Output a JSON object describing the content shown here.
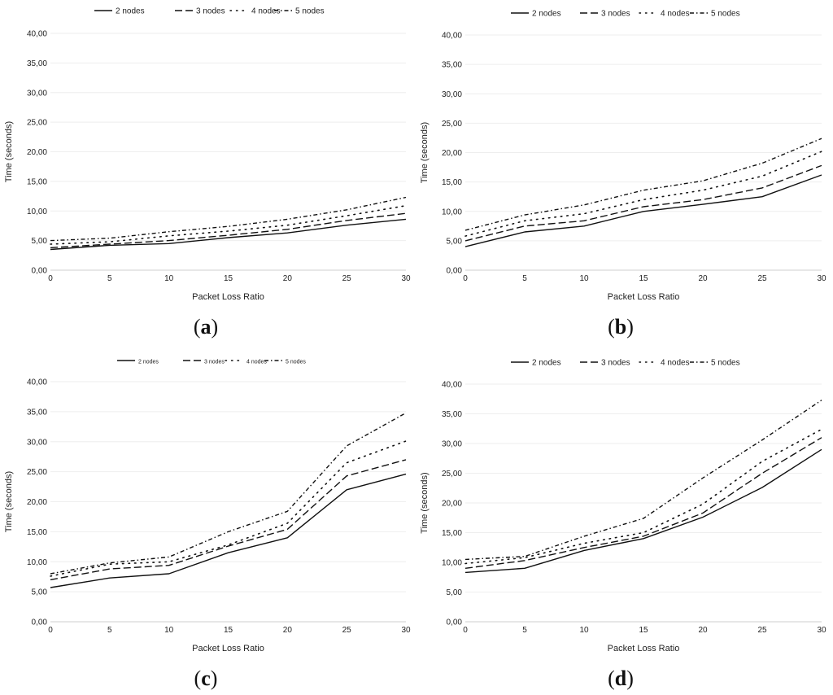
{
  "chart_data": [
    {
      "type": "line",
      "panel_label": "a",
      "xlabel": "Packet Loss Ratio",
      "ylabel": "Time (seconds)",
      "categories": [
        "0",
        "5",
        "10",
        "15",
        "20",
        "25",
        "30"
      ],
      "x": [
        0,
        5,
        10,
        15,
        20,
        25,
        30
      ],
      "ylim": [
        0,
        40
      ],
      "yticks": [
        "0,00",
        "5,00",
        "10,00",
        "15,00",
        "20,00",
        "25,00",
        "30,00",
        "35,00",
        "40,00"
      ],
      "grid": true,
      "legend_position": "top",
      "series": [
        {
          "name": "2 nodes",
          "style": "solid",
          "values": [
            3.5,
            4.2,
            4.5,
            5.5,
            6.3,
            7.6,
            8.6
          ]
        },
        {
          "name": "3 nodes",
          "style": "dashed",
          "values": [
            3.8,
            4.4,
            5.0,
            5.9,
            6.9,
            8.4,
            9.6
          ]
        },
        {
          "name": "4 nodes",
          "style": "dotted",
          "values": [
            4.4,
            4.8,
            5.8,
            6.6,
            7.6,
            9.2,
            10.9
          ]
        },
        {
          "name": "5 nodes",
          "style": "dashdot",
          "values": [
            5.0,
            5.4,
            6.5,
            7.4,
            8.6,
            10.2,
            12.3
          ]
        }
      ]
    },
    {
      "type": "line",
      "panel_label": "b",
      "xlabel": "Packet Loss Ratio",
      "ylabel": "Time (seconds)",
      "categories": [
        "0",
        "5",
        "10",
        "15",
        "20",
        "25",
        "30"
      ],
      "x": [
        0,
        5,
        10,
        15,
        20,
        25,
        30
      ],
      "ylim": [
        0,
        40
      ],
      "yticks": [
        "0,00",
        "5,00",
        "10,00",
        "15,00",
        "20,00",
        "25,00",
        "30,00",
        "35,00",
        "40,00"
      ],
      "grid": true,
      "legend_position": "top",
      "series": [
        {
          "name": "2 nodes",
          "style": "solid",
          "values": [
            4.0,
            6.5,
            7.5,
            10.0,
            11.2,
            12.5,
            16.2
          ]
        },
        {
          "name": "3 nodes",
          "style": "dashed",
          "values": [
            5.0,
            7.5,
            8.4,
            10.8,
            12.0,
            14.0,
            17.8
          ]
        },
        {
          "name": "4 nodes",
          "style": "dotted",
          "values": [
            5.8,
            8.4,
            9.6,
            12.0,
            13.6,
            16.0,
            20.2
          ]
        },
        {
          "name": "5 nodes",
          "style": "dashdot",
          "values": [
            6.8,
            9.4,
            11.1,
            13.6,
            15.2,
            18.2,
            22.4
          ]
        }
      ]
    },
    {
      "type": "line",
      "panel_label": "c",
      "xlabel": "Packet Loss Ratio",
      "ylabel": "Time (seconds)",
      "categories": [
        "0",
        "5",
        "10",
        "15",
        "20",
        "25",
        "30"
      ],
      "x": [
        0,
        5,
        10,
        15,
        20,
        25,
        30
      ],
      "ylim": [
        0,
        40
      ],
      "yticks": [
        "0,00",
        "5,00",
        "10,00",
        "15,00",
        "20,00",
        "25,00",
        "30,00",
        "35,00",
        "40,00"
      ],
      "grid": true,
      "legend_position": "top",
      "series": [
        {
          "name": "2 nodes",
          "style": "solid",
          "values": [
            5.7,
            7.3,
            8.0,
            11.5,
            14.0,
            22.0,
            24.6
          ]
        },
        {
          "name": "3 nodes",
          "style": "dashed",
          "values": [
            7.0,
            8.8,
            9.4,
            12.6,
            15.4,
            24.3,
            27.0
          ]
        },
        {
          "name": "4 nodes",
          "style": "dotted",
          "values": [
            7.6,
            9.6,
            10.0,
            12.8,
            16.4,
            26.5,
            30.1
          ]
        },
        {
          "name": "5 nodes",
          "style": "dashdot",
          "values": [
            8.0,
            9.8,
            10.8,
            15.0,
            18.4,
            29.3,
            34.8
          ]
        }
      ]
    },
    {
      "type": "line",
      "panel_label": "d",
      "xlabel": "Packet Loss Ratio",
      "ylabel": "Time (seconds)",
      "categories": [
        "0",
        "5",
        "10",
        "15",
        "20",
        "25",
        "30"
      ],
      "x": [
        0,
        5,
        10,
        15,
        20,
        25,
        30
      ],
      "ylim": [
        0,
        40
      ],
      "yticks": [
        "0,00",
        "5,00",
        "10,00",
        "15,00",
        "20,00",
        "25,00",
        "30,00",
        "35,00",
        "40,00"
      ],
      "grid": true,
      "legend_position": "top",
      "series": [
        {
          "name": "2 nodes",
          "style": "solid",
          "values": [
            8.3,
            9.0,
            12.0,
            14.0,
            17.6,
            22.6,
            29.0
          ]
        },
        {
          "name": "3 nodes",
          "style": "dashed",
          "values": [
            9.0,
            10.3,
            12.5,
            14.4,
            18.3,
            25.0,
            31.0
          ]
        },
        {
          "name": "4 nodes",
          "style": "dotted",
          "values": [
            9.8,
            10.8,
            13.2,
            15.0,
            19.8,
            27.0,
            32.4
          ]
        },
        {
          "name": "5 nodes",
          "style": "dashdot",
          "values": [
            10.5,
            11.0,
            14.4,
            17.4,
            24.2,
            30.6,
            37.3
          ]
        }
      ]
    }
  ]
}
